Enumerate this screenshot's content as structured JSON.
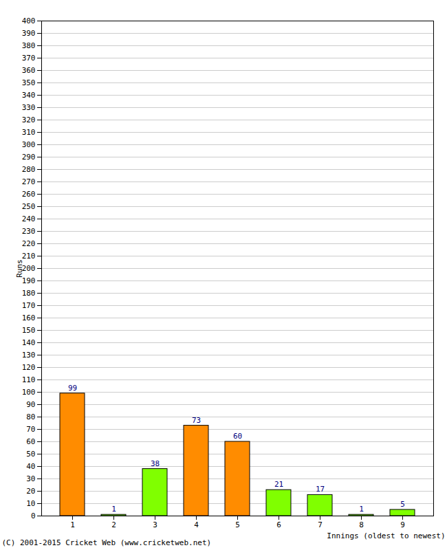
{
  "chart_data": {
    "type": "bar",
    "categories": [
      "1",
      "2",
      "3",
      "4",
      "5",
      "6",
      "7",
      "8",
      "9"
    ],
    "values": [
      99,
      1,
      38,
      73,
      60,
      21,
      17,
      1,
      5
    ],
    "colors": [
      "#ff8c00",
      "#80ff00",
      "#80ff00",
      "#ff8c00",
      "#ff8c00",
      "#80ff00",
      "#80ff00",
      "#80ff00",
      "#80ff00"
    ],
    "x_label": "Innings (oldest to newest)",
    "y_label": "Runs",
    "caption": "(C) 2001-2015 Cricket Web (www.cricketweb.net)",
    "ylim": [
      0,
      400
    ],
    "yticks": [
      0,
      10,
      20,
      30,
      40,
      50,
      60,
      70,
      80,
      90,
      100,
      110,
      120,
      130,
      140,
      150,
      160,
      170,
      180,
      190,
      200,
      210,
      220,
      230,
      240,
      250,
      260,
      270,
      280,
      290,
      300,
      310,
      320,
      330,
      340,
      350,
      360,
      370,
      380,
      390,
      400
    ],
    "grid": true,
    "data_labels": true
  }
}
